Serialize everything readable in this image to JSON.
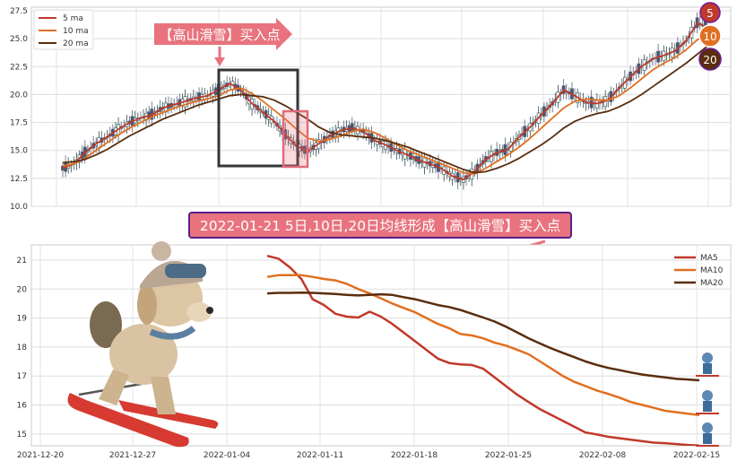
{
  "chart_data": [
    {
      "type": "candlestick",
      "ylim": [
        10.0,
        27.5
      ],
      "yticks": [
        "10.0",
        "12.5",
        "15.0",
        "17.5",
        "20.0",
        "22.5",
        "25.0",
        "27.5"
      ],
      "legend": [
        "5 ma",
        "10 ma",
        "20 ma"
      ],
      "legend_position": "top-left",
      "grid": true,
      "annotation_label": "【高山滑雪】买入点",
      "badges": [
        "5",
        "10",
        "20"
      ],
      "series": [
        {
          "name": "5 ma",
          "color": "#c0392b",
          "values": [
            13.4,
            13.8,
            14.8,
            15.6,
            16.2,
            16.9,
            17.5,
            17.9,
            18.2,
            18.8,
            19.1,
            19.4,
            19.7,
            19.9,
            20.4,
            21.0,
            20.4,
            19.2,
            18.4,
            17.6,
            16.4,
            15.4,
            14.9,
            15.6,
            16.3,
            16.8,
            17.0,
            16.7,
            15.9,
            15.5,
            15.0,
            14.6,
            14.1,
            13.8,
            13.4,
            12.7,
            12.4,
            13.1,
            14.2,
            14.8,
            15.1,
            16.2,
            17.1,
            18.2,
            19.2,
            20.4,
            19.9,
            19.3,
            19.2,
            19.5,
            20.6,
            21.6,
            22.5,
            23.2,
            23.5,
            23.9,
            24.8,
            26.4,
            26.0
          ]
        },
        {
          "name": "10 ma",
          "color": "#e07020",
          "values": [
            13.6,
            13.8,
            14.3,
            15.0,
            15.7,
            16.4,
            17.0,
            17.5,
            18.0,
            18.4,
            18.8,
            19.1,
            19.4,
            19.6,
            19.9,
            20.4,
            20.6,
            20.1,
            19.4,
            18.6,
            17.8,
            16.9,
            16.1,
            15.8,
            16.0,
            16.3,
            16.7,
            16.9,
            16.6,
            16.1,
            15.5,
            15.0,
            14.6,
            14.2,
            13.8,
            13.4,
            13.0,
            12.9,
            13.4,
            14.0,
            14.6,
            15.3,
            16.1,
            17.0,
            17.9,
            18.8,
            19.4,
            19.6,
            19.5,
            19.5,
            19.9,
            20.6,
            21.4,
            22.2,
            22.8,
            23.3,
            24.0,
            24.9,
            25.4
          ]
        },
        {
          "name": "20 ma",
          "color": "#5a2d0c",
          "values": [
            13.9,
            14.0,
            14.2,
            14.6,
            15.1,
            15.7,
            16.3,
            16.8,
            17.3,
            17.8,
            18.2,
            18.6,
            19.0,
            19.3,
            19.6,
            19.9,
            20.0,
            19.9,
            19.8,
            19.5,
            19.0,
            18.4,
            17.8,
            17.1,
            16.6,
            16.4,
            16.3,
            16.2,
            16.1,
            15.9,
            15.6,
            15.3,
            14.9,
            14.5,
            14.1,
            13.7,
            13.3,
            13.0,
            13.1,
            13.4,
            13.8,
            14.3,
            14.9,
            15.5,
            16.2,
            17.0,
            17.6,
            18.0,
            18.3,
            18.5,
            18.9,
            19.4,
            20.0,
            20.7,
            21.4,
            22.1,
            22.8,
            23.6,
            24.4
          ]
        }
      ]
    },
    {
      "type": "line",
      "title": "2022-01-21 5日,10日,20日均线形成【高山滑雪】买入点",
      "categories": [
        "2022-01-07",
        "2022-01-08",
        "2022-01-09",
        "2022-01-10",
        "2022-01-11",
        "2022-01-12",
        "2022-01-13",
        "2022-01-14",
        "2022-01-15",
        "2022-01-16",
        "2022-01-17",
        "2022-01-18",
        "2022-01-19",
        "2022-01-20",
        "2022-01-21",
        "2022-01-22",
        "2022-01-23",
        "2022-01-24",
        "2022-01-25",
        "2022-01-26",
        "2022-01-27",
        "2022-01-28",
        "2022-01-29",
        "2022-01-30",
        "2022-01-31",
        "2022-02-01",
        "2022-02-02",
        "2022-02-03",
        "2022-02-04",
        "2022-02-05",
        "2022-02-06",
        "2022-02-07",
        "2022-02-08",
        "2022-02-09",
        "2022-02-10",
        "2022-02-11",
        "2022-02-12",
        "2022-02-13",
        "2022-02-14"
      ],
      "xticks": [
        "2021-12-20",
        "2021-12-27",
        "2022-01-04",
        "2022-01-11",
        "2022-01-18",
        "2022-01-25",
        "2022-02-08",
        "2022-02-15"
      ],
      "ylim": [
        14.6,
        21.4
      ],
      "yticks": [
        "15",
        "16",
        "17",
        "18",
        "19",
        "20",
        "21"
      ],
      "legend_position": "top-right",
      "grid": true,
      "series": [
        {
          "name": "MA5",
          "color": "#c0392b",
          "values": [
            21.15,
            21.05,
            20.75,
            20.35,
            19.65,
            19.45,
            19.15,
            19.05,
            19.02,
            19.22,
            19.05,
            18.8,
            18.5,
            18.2,
            17.9,
            17.6,
            17.45,
            17.4,
            17.38,
            17.25,
            16.95,
            16.65,
            16.35,
            16.1,
            15.85,
            15.65,
            15.45,
            15.25,
            15.05,
            14.98,
            14.9,
            14.85,
            14.8,
            14.75,
            14.7,
            14.68,
            14.65,
            14.62,
            14.6
          ]
        },
        {
          "name": "MA10",
          "color": "#e07020",
          "values": [
            20.42,
            20.48,
            20.48,
            20.48,
            20.42,
            20.35,
            20.3,
            20.18,
            20.0,
            19.85,
            19.68,
            19.5,
            19.35,
            19.2,
            19.0,
            18.8,
            18.65,
            18.45,
            18.4,
            18.3,
            18.15,
            18.05,
            17.9,
            17.75,
            17.5,
            17.25,
            17.0,
            16.8,
            16.65,
            16.5,
            16.38,
            16.25,
            16.1,
            16.0,
            15.9,
            15.8,
            15.75,
            15.7,
            15.65
          ]
        },
        {
          "name": "MA20",
          "color": "#5a2d0c",
          "values": [
            19.85,
            19.87,
            19.87,
            19.88,
            19.87,
            19.85,
            19.83,
            19.8,
            19.78,
            19.8,
            19.82,
            19.8,
            19.72,
            19.65,
            19.55,
            19.45,
            19.38,
            19.28,
            19.15,
            19.02,
            18.88,
            18.7,
            18.5,
            18.3,
            18.12,
            17.95,
            17.8,
            17.65,
            17.5,
            17.38,
            17.28,
            17.2,
            17.12,
            17.05,
            17.0,
            16.95,
            16.9,
            16.88,
            16.85
          ]
        }
      ]
    }
  ]
}
